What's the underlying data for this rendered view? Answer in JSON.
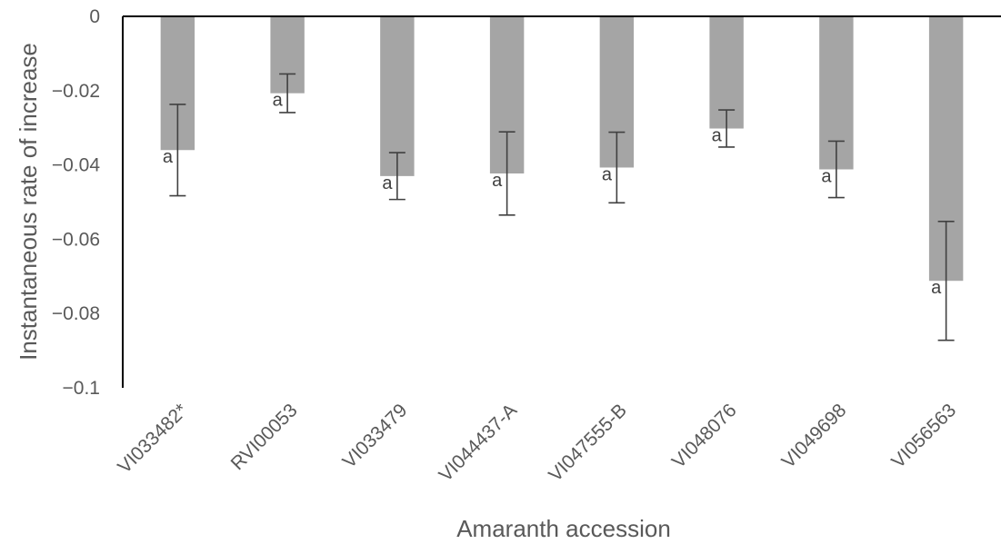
{
  "chart_data": {
    "type": "bar",
    "title": "",
    "xlabel": "Amaranth accession",
    "ylabel": "Instantaneous rate of increase",
    "categories": [
      "VI033482*",
      "RVI00053",
      "VI033479",
      "VI044437-A",
      "VI047555-B",
      "VI048076",
      "VI049698",
      "VI056563"
    ],
    "values": [
      -0.036,
      -0.0207,
      -0.043,
      -0.0423,
      -0.0407,
      -0.0302,
      -0.0412,
      -0.0712
    ],
    "error": [
      0.0123,
      0.0052,
      0.0063,
      0.0112,
      0.0095,
      0.005,
      0.0076,
      0.016
    ],
    "significance": [
      "a",
      "a",
      "a",
      "a",
      "a",
      "a",
      "a",
      "a"
    ],
    "ylim": [
      -0.1,
      0
    ],
    "yticks": [
      0,
      -0.02,
      -0.04,
      -0.06,
      -0.08,
      -0.1
    ],
    "ytick_labels": [
      "0",
      "−0.02",
      "−0.04",
      "−0.06",
      "−0.08",
      "−0.1"
    ],
    "bar_color": "#a5a5a5",
    "error_color": "#404040",
    "axis_color": "#000000",
    "grid": false,
    "legend": "none"
  }
}
